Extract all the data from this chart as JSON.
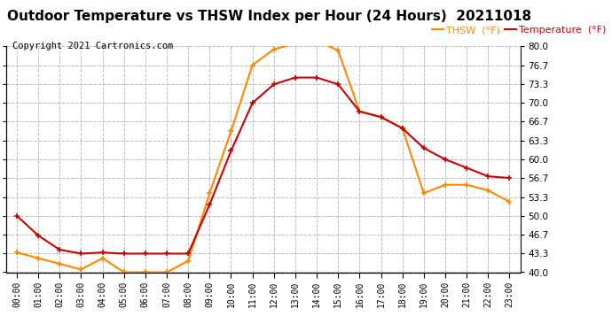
{
  "title": "Outdoor Temperature vs THSW Index per Hour (24 Hours)  20211018",
  "copyright": "Copyright 2021 Cartronics.com",
  "legend_thsw": "THSW  (°F)",
  "legend_temp": "Temperature  (°F)",
  "x_labels": [
    "00:00",
    "01:00",
    "02:00",
    "03:00",
    "04:00",
    "05:00",
    "06:00",
    "07:00",
    "08:00",
    "09:00",
    "10:00",
    "11:00",
    "12:00",
    "13:00",
    "14:00",
    "15:00",
    "16:00",
    "17:00",
    "18:00",
    "19:00",
    "20:00",
    "21:00",
    "22:00",
    "23:00"
  ],
  "temperature": [
    50.0,
    46.5,
    44.0,
    43.3,
    43.5,
    43.3,
    43.3,
    43.3,
    43.3,
    52.0,
    61.5,
    70.0,
    73.3,
    74.5,
    74.5,
    73.3,
    68.5,
    67.5,
    65.5,
    62.0,
    60.0,
    58.5,
    57.0,
    56.7
  ],
  "thsw": [
    43.5,
    42.5,
    41.5,
    40.5,
    42.5,
    40.0,
    40.0,
    40.0,
    42.0,
    54.0,
    65.0,
    76.7,
    79.5,
    80.5,
    81.0,
    79.3,
    68.5,
    67.5,
    65.5,
    54.0,
    55.5,
    55.5,
    54.5,
    52.5
  ],
  "ylim": [
    40.0,
    80.0
  ],
  "yticks": [
    40.0,
    43.3,
    46.7,
    50.0,
    53.3,
    56.7,
    60.0,
    63.3,
    66.7,
    70.0,
    73.3,
    76.7,
    80.0
  ],
  "temp_color": "#cc0000",
  "thsw_color": "#ff8800",
  "background_color": "#ffffff",
  "grid_color": "#bbbbbb",
  "title_color": "#000000",
  "copyright_color": "#000000",
  "legend_thsw_color": "#ff8800",
  "legend_temp_color": "#cc0000",
  "title_fontsize": 11,
  "copyright_fontsize": 7.5,
  "tick_fontsize": 7.5,
  "xtick_fontsize": 7.0
}
